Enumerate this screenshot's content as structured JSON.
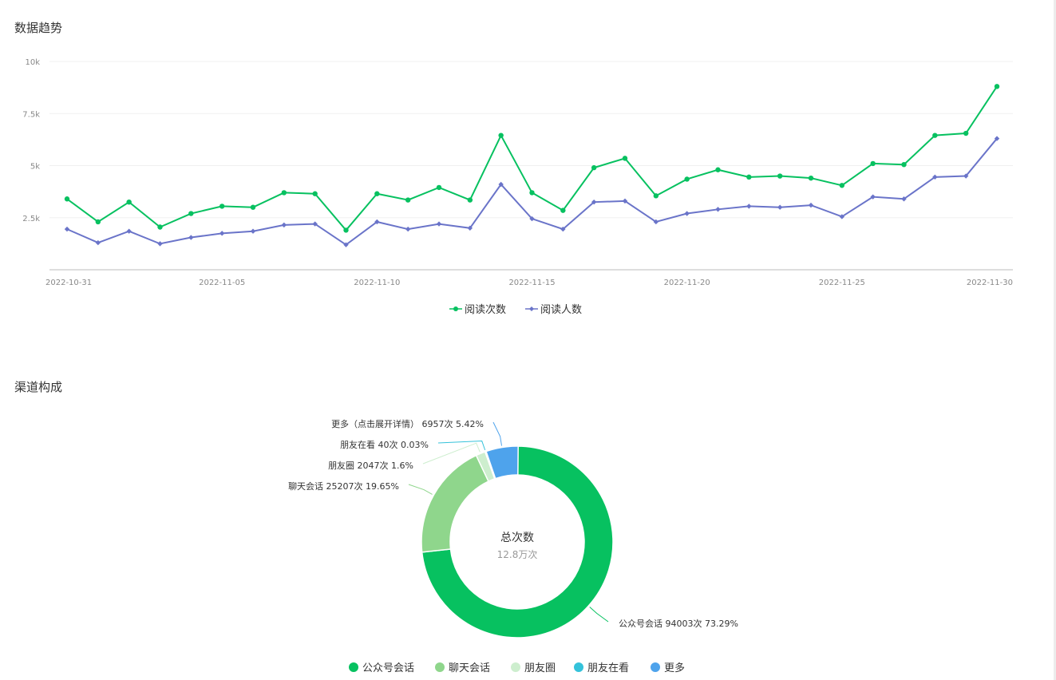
{
  "sections": {
    "trend_title": "数据趋势",
    "channel_title": "渠道构成"
  },
  "chart_data": [
    {
      "type": "line",
      "title": "数据趋势",
      "ylim": [
        0,
        10000
      ],
      "y_ticks": [
        {
          "value": 2500,
          "label": "2.5k"
        },
        {
          "value": 5000,
          "label": "5k"
        },
        {
          "value": 7500,
          "label": "7.5k"
        },
        {
          "value": 10000,
          "label": "10k"
        }
      ],
      "x_ticks": [
        {
          "index": 0,
          "label": "2022-10-31"
        },
        {
          "index": 5,
          "label": "2022-11-05"
        },
        {
          "index": 10,
          "label": "2022-11-10"
        },
        {
          "index": 15,
          "label": "2022-11-15"
        },
        {
          "index": 20,
          "label": "2022-11-20"
        },
        {
          "index": 25,
          "label": "2022-11-25"
        },
        {
          "index": 30,
          "label": "2022-11-30"
        }
      ],
      "x": [
        "2022-10-31",
        "2022-11-01",
        "2022-11-02",
        "2022-11-03",
        "2022-11-04",
        "2022-11-05",
        "2022-11-06",
        "2022-11-07",
        "2022-11-08",
        "2022-11-09",
        "2022-11-10",
        "2022-11-11",
        "2022-11-12",
        "2022-11-13",
        "2022-11-14",
        "2022-11-15",
        "2022-11-16",
        "2022-11-17",
        "2022-11-18",
        "2022-11-19",
        "2022-11-20",
        "2022-11-21",
        "2022-11-22",
        "2022-11-23",
        "2022-11-24",
        "2022-11-25",
        "2022-11-26",
        "2022-11-27",
        "2022-11-28",
        "2022-11-29",
        "2022-11-30"
      ],
      "series": [
        {
          "name": "阅读次数",
          "color": "#07c160",
          "marker": "circle",
          "values": [
            3400,
            2300,
            3250,
            2050,
            2700,
            3050,
            3000,
            3700,
            3650,
            1900,
            3650,
            3350,
            3950,
            3350,
            6450,
            3700,
            2850,
            4900,
            5350,
            3550,
            4350,
            4800,
            4450,
            4500,
            4400,
            4050,
            5100,
            5050,
            6450,
            6550,
            8800
          ]
        },
        {
          "name": "阅读人数",
          "color": "#6a74c9",
          "marker": "diamond",
          "values": [
            1950,
            1300,
            1850,
            1250,
            1550,
            1750,
            1850,
            2150,
            2200,
            1200,
            2300,
            1950,
            2200,
            2000,
            4100,
            2450,
            1950,
            3250,
            3300,
            2300,
            2700,
            2900,
            3050,
            3000,
            3100,
            2550,
            3500,
            3400,
            4450,
            4500,
            6300
          ]
        }
      ],
      "legend": "bottom"
    },
    {
      "type": "pie",
      "title": "渠道构成",
      "donut": true,
      "center": {
        "title": "总次数",
        "value": "12.8万次"
      },
      "slices": [
        {
          "name": "公众号会话",
          "value": 94003,
          "label": "公众号会话 94003次 73.29%",
          "color": "#07c160"
        },
        {
          "name": "聊天会话",
          "value": 25207,
          "label": "聊天会话 25207次 19.65%",
          "color": "#8fd68c"
        },
        {
          "name": "朋友圈",
          "value": 2047,
          "label": "朋友圈 2047次 1.6%",
          "color": "#cdeece"
        },
        {
          "name": "朋友在看",
          "value": 40,
          "label": "朋友在看 40次 0.03%",
          "color": "#34c2da"
        },
        {
          "name": "更多",
          "value": 6957,
          "label": "更多（点击展开详情） 6957次 5.42%",
          "color": "#4ea3ec"
        }
      ],
      "legend": "bottom"
    }
  ]
}
